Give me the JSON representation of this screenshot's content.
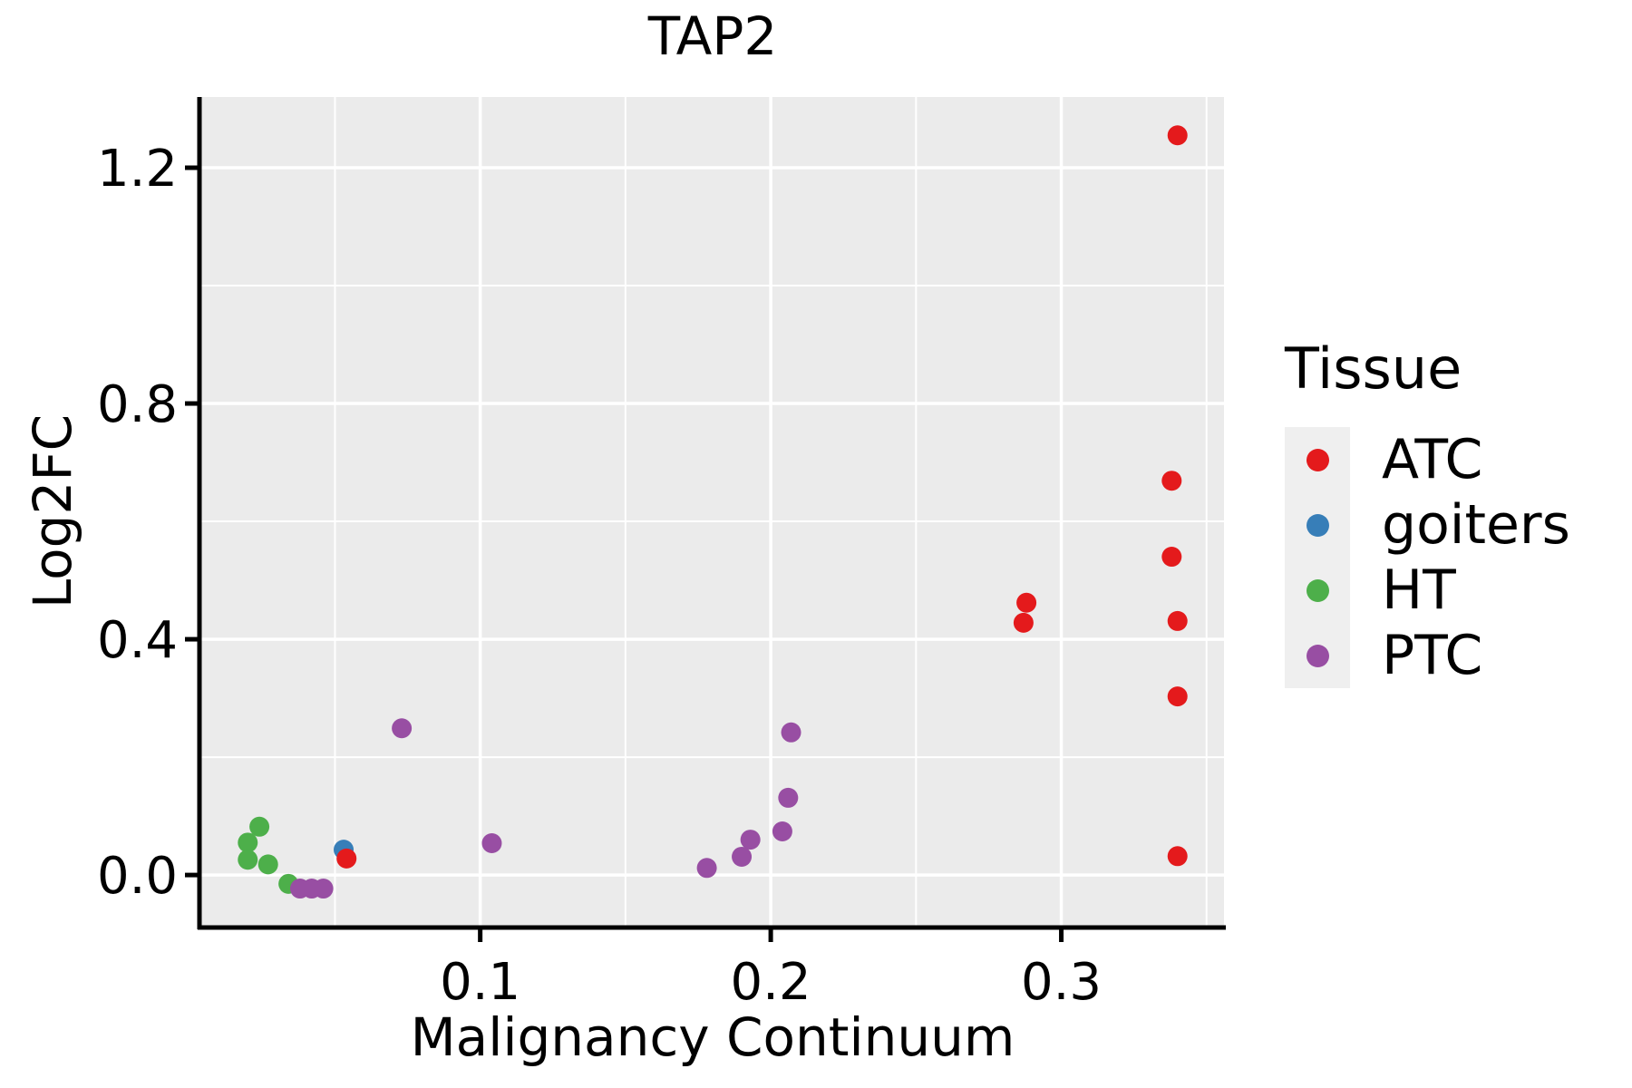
{
  "title": "TAP2",
  "axis": {
    "x_label": "Malignancy Continuum",
    "y_label": "Log2FC"
  },
  "legend": {
    "title": "Tissue",
    "items": [
      {
        "label": "ATC",
        "color": "#e41a1c"
      },
      {
        "label": "goiters",
        "color": "#377eb8"
      },
      {
        "label": "HT",
        "color": "#4daf4a"
      },
      {
        "label": "PTC",
        "color": "#984ea3"
      }
    ]
  },
  "chart_data": {
    "type": "scatter",
    "title": "TAP2",
    "xlabel": "Malignancy Continuum",
    "ylabel": "Log2FC",
    "xlim": [
      0.004,
      0.356
    ],
    "ylim": [
      -0.086,
      1.32
    ],
    "x_major_ticks": [
      0.1,
      0.2,
      0.3
    ],
    "x_minor_ticks": [
      0.05,
      0.15,
      0.25,
      0.35
    ],
    "x_tick_labels": [
      "0.1",
      "0.2",
      "0.3"
    ],
    "y_major_ticks": [
      0.0,
      0.4,
      0.8,
      1.2
    ],
    "y_minor_ticks": [
      0.2,
      0.6,
      1.0
    ],
    "y_tick_labels": [
      "0.0",
      "0.4",
      "0.8",
      "1.2"
    ],
    "grid": true,
    "legend_position": "right",
    "panel_bg": "#ebebeb",
    "grid_color": "#ffffff",
    "axis_color": "#000000",
    "point_radius_px": 11,
    "series": [
      {
        "name": "ATC",
        "color": "#e41a1c",
        "points": [
          [
            0.34,
            1.255
          ],
          [
            0.338,
            0.669
          ],
          [
            0.338,
            0.54
          ],
          [
            0.34,
            0.431
          ],
          [
            0.34,
            0.303
          ],
          [
            0.34,
            0.032
          ],
          [
            0.288,
            0.462
          ],
          [
            0.287,
            0.428
          ],
          [
            0.054,
            0.028
          ]
        ]
      },
      {
        "name": "goiters",
        "color": "#377eb8",
        "points": [
          [
            0.053,
            0.043
          ]
        ]
      },
      {
        "name": "HT",
        "color": "#4daf4a",
        "points": [
          [
            0.024,
            0.082
          ],
          [
            0.02,
            0.055
          ],
          [
            0.02,
            0.026
          ],
          [
            0.027,
            0.018
          ],
          [
            0.034,
            -0.015
          ]
        ]
      },
      {
        "name": "PTC",
        "color": "#984ea3",
        "points": [
          [
            0.073,
            0.249
          ],
          [
            0.104,
            0.054
          ],
          [
            0.178,
            0.012
          ],
          [
            0.19,
            0.031
          ],
          [
            0.193,
            0.06
          ],
          [
            0.204,
            0.074
          ],
          [
            0.206,
            0.131
          ],
          [
            0.207,
            0.242
          ],
          [
            0.038,
            -0.023
          ],
          [
            0.042,
            -0.023
          ],
          [
            0.046,
            -0.023
          ]
        ]
      }
    ]
  }
}
